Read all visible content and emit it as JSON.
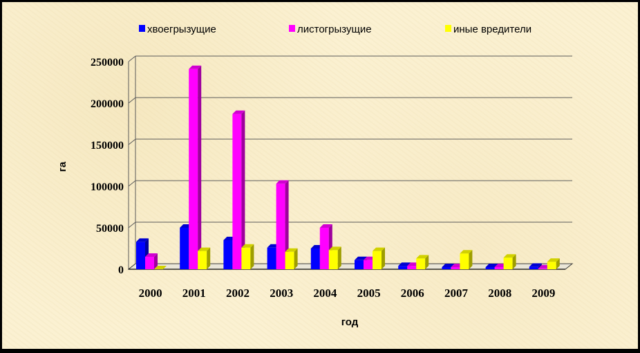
{
  "chart_data": {
    "type": "bar",
    "title": "",
    "xlabel": "год",
    "ylabel": "га",
    "ylim": [
      0,
      250000
    ],
    "yticks": [
      0,
      50000,
      100000,
      150000,
      200000,
      250000
    ],
    "categories": [
      "2000",
      "2001",
      "2002",
      "2003",
      "2004",
      "2005",
      "2006",
      "2007",
      "2008",
      "2009"
    ],
    "series": [
      {
        "name": "хвоегрызущие",
        "color": "#0000ff",
        "values": [
          33000,
          50000,
          35000,
          26000,
          25000,
          11000,
          4000,
          2500,
          2500,
          3000
        ]
      },
      {
        "name": "листогрызущие",
        "color": "#ff00ff",
        "values": [
          15000,
          241000,
          187000,
          103000,
          50000,
          11000,
          4000,
          2500,
          2500,
          1000
        ]
      },
      {
        "name": "иные вредители",
        "color": "#ffff00",
        "values": [
          0,
          22000,
          26000,
          21000,
          23000,
          22000,
          13000,
          19000,
          14000,
          9000
        ]
      }
    ],
    "grid": true,
    "legend_position": "top"
  }
}
